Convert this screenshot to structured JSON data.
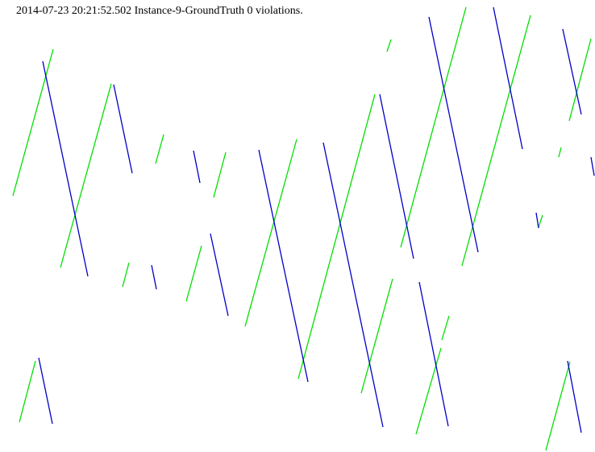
{
  "header": {
    "timestamp": "2014-07-23 20:21:52.502",
    "instance": "Instance-9-GroundTruth",
    "violations": "0 violations."
  },
  "colors": {
    "green": "#00e000",
    "blue": "#0000c8",
    "background": "#ffffff"
  }
}
